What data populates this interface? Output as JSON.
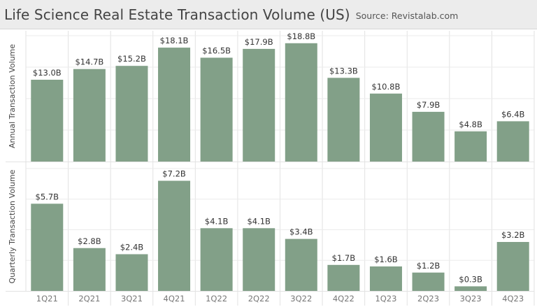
{
  "header": {
    "title": "Life Science Real Estate Transaction Volume (US)",
    "source": "Source: Revistalab.com"
  },
  "chart_data": [
    {
      "type": "bar",
      "title": "",
      "ylabel": "Annual Transaction Volume",
      "categories": [
        "1Q21",
        "2Q21",
        "3Q21",
        "4Q21",
        "1Q22",
        "2Q22",
        "3Q22",
        "4Q22",
        "1Q23",
        "2Q23",
        "3Q23",
        "4Q23"
      ],
      "values": [
        13.0,
        14.7,
        15.2,
        18.1,
        16.5,
        17.9,
        18.8,
        13.3,
        10.8,
        7.9,
        4.8,
        6.4
      ],
      "data_labels": [
        "$13.0B",
        "$14.7B",
        "$15.2B",
        "$18.1B",
        "$16.5B",
        "$17.9B",
        "$18.8B",
        "$13.3B",
        "$10.8B",
        "$7.9B",
        "$4.8B",
        "$6.4B"
      ],
      "ylim": [
        0,
        20
      ],
      "color": "#82a088",
      "grid": true
    },
    {
      "type": "bar",
      "title": "",
      "ylabel": "Quarterly Transaction Volume",
      "xlabel": "",
      "categories": [
        "1Q21",
        "2Q21",
        "3Q21",
        "4Q21",
        "1Q22",
        "2Q22",
        "3Q22",
        "4Q22",
        "1Q23",
        "2Q23",
        "3Q23",
        "4Q23"
      ],
      "values": [
        5.7,
        2.8,
        2.4,
        7.2,
        4.1,
        4.1,
        3.4,
        1.7,
        1.6,
        1.2,
        0.3,
        3.2
      ],
      "data_labels": [
        "$5.7B",
        "$2.8B",
        "$2.4B",
        "$7.2B",
        "$4.1B",
        "$4.1B",
        "$3.4B",
        "$1.7B",
        "$1.6B",
        "$1.2B",
        "$0.3B",
        "$3.2B"
      ],
      "ylim": [
        0,
        8
      ],
      "color": "#82a088",
      "grid": true
    }
  ]
}
